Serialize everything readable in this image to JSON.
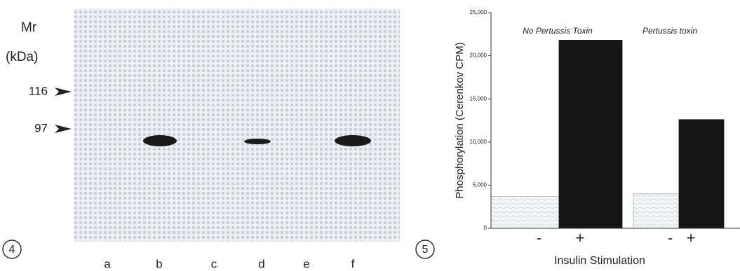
{
  "blot": {
    "panel": "4",
    "mr_label": "Mr",
    "unit_label": "(kDa)",
    "markers": [
      "116",
      "97"
    ],
    "lanes": [
      "a",
      "b",
      "c",
      "d",
      "e",
      "f"
    ]
  },
  "chart_data": {
    "type": "bar",
    "panel": "5",
    "ylabel": "Phosphorylation (Cerenkov CPM)",
    "xlabel": "Insulin Stimulation",
    "annotations": [
      "No Pertussis Toxin",
      "Pertussis toxin"
    ],
    "categories": [
      "-",
      "+",
      "-",
      "+"
    ],
    "values": [
      3700,
      21800,
      4000,
      12600
    ],
    "colors": [
      "#eef1f2",
      "#151515",
      "#eef1f2",
      "#151515"
    ],
    "ylim": [
      0,
      25000
    ],
    "yticks": [
      0,
      {
        "value": 5000,
        "label": "5,000"
      },
      {
        "value": 10000,
        "label": "10,000"
      },
      {
        "value": 15000,
        "label": "15,000"
      },
      {
        "value": 20000,
        "label": "20,000"
      },
      {
        "value": 25000,
        "label": "25,000"
      }
    ]
  }
}
